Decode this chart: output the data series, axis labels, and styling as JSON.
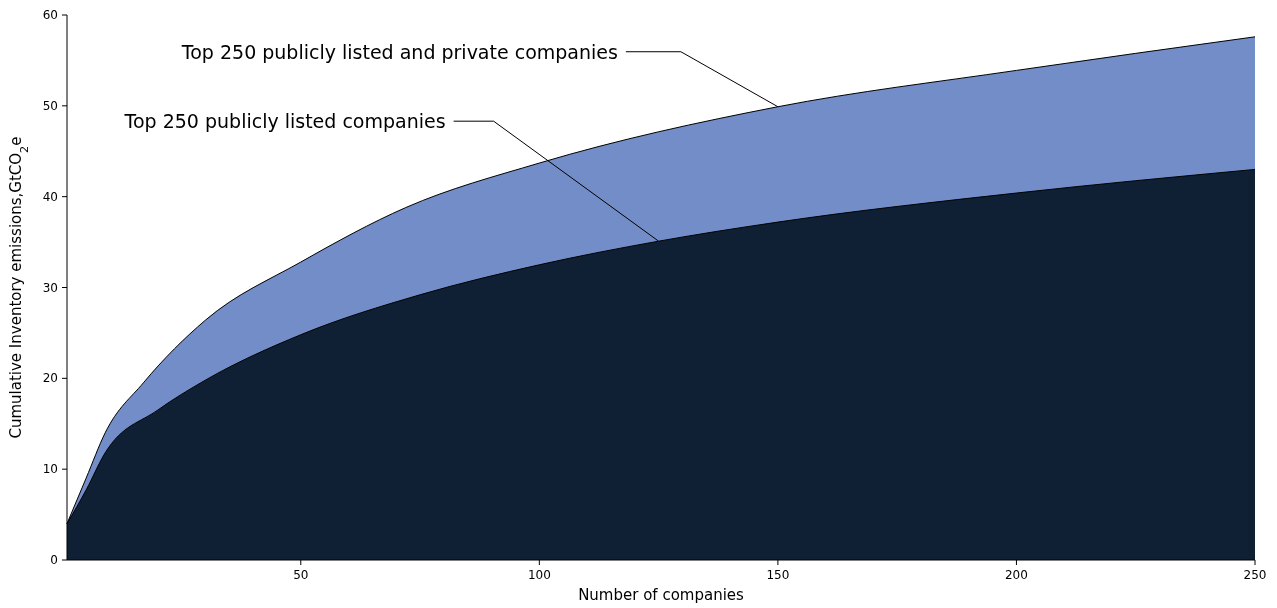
{
  "chart_data": {
    "type": "area",
    "xlabel": "Number of companies",
    "ylabel": "Cumulative Inventory emissions,GtCO$_{2}$e",
    "xlim": [
      1,
      250
    ],
    "xticks": [
      50,
      100,
      150,
      200,
      250
    ],
    "ylim": [
      0,
      60
    ],
    "yticks": [
      0,
      10,
      20,
      30,
      40,
      50,
      60
    ],
    "grid": false,
    "series": [
      {
        "color": "#728dc8",
        "x": [
          1,
          5,
          9,
          17,
          30,
          50,
          72,
          100,
          150,
          200,
          250
        ],
        "values": [
          4,
          9,
          14,
          19.5,
          26.4,
          32.8,
          38.8,
          43.7,
          49.9,
          53.9,
          57.6
        ]
      },
      {
        "color": "#0f2035",
        "x": [
          1,
          5,
          9,
          20,
          30,
          50,
          75,
          100,
          125,
          150,
          200,
          250
        ],
        "values": [
          4,
          7.7,
          11.8,
          16.5,
          19.8,
          24.8,
          29.2,
          32.5,
          35.1,
          37.2,
          40.4,
          43
        ]
      }
    ],
    "annotations": [
      {
        "text": "Top 250 publicly listed and private companies",
        "x": 150,
        "y": 49.9
      },
      {
        "text": "Top 250 publicly listed companies",
        "x": 125,
        "y": 35.1
      }
    ]
  }
}
